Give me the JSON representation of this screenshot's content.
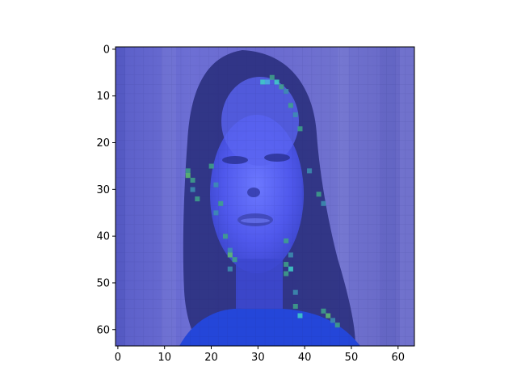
{
  "chart_data": {
    "type": "heatmap",
    "subtype": "image (imshow)",
    "title": "",
    "xlabel": "",
    "ylabel": "",
    "image_size": [
      64,
      64
    ],
    "xlim": [
      -0.5,
      63.5
    ],
    "ylim": [
      63.5,
      -0.5
    ],
    "y_inverted": true,
    "x_ticks": [
      0,
      10,
      20,
      30,
      40,
      50,
      60
    ],
    "y_ticks": [
      0,
      10,
      20,
      30,
      40,
      50,
      60
    ],
    "x_tick_labels": [
      "0",
      "10",
      "20",
      "30",
      "40",
      "50",
      "60"
    ],
    "y_tick_labels": [
      "0",
      "10",
      "20",
      "30",
      "40",
      "50",
      "60"
    ],
    "grid": false,
    "legend": "none",
    "content": "blue-tinted low-resolution portrait of a person with long hair, with scattered green/cyan saliency highlights",
    "colors": {
      "background_purple": "#6a6ad2",
      "face_blue": "#4f55e6",
      "hair_dark": "#2a2f7a",
      "clothing_blue": "#2646d8",
      "highlight_green": "#3fa38a",
      "highlight_cyan": "#3fd0c8"
    }
  }
}
